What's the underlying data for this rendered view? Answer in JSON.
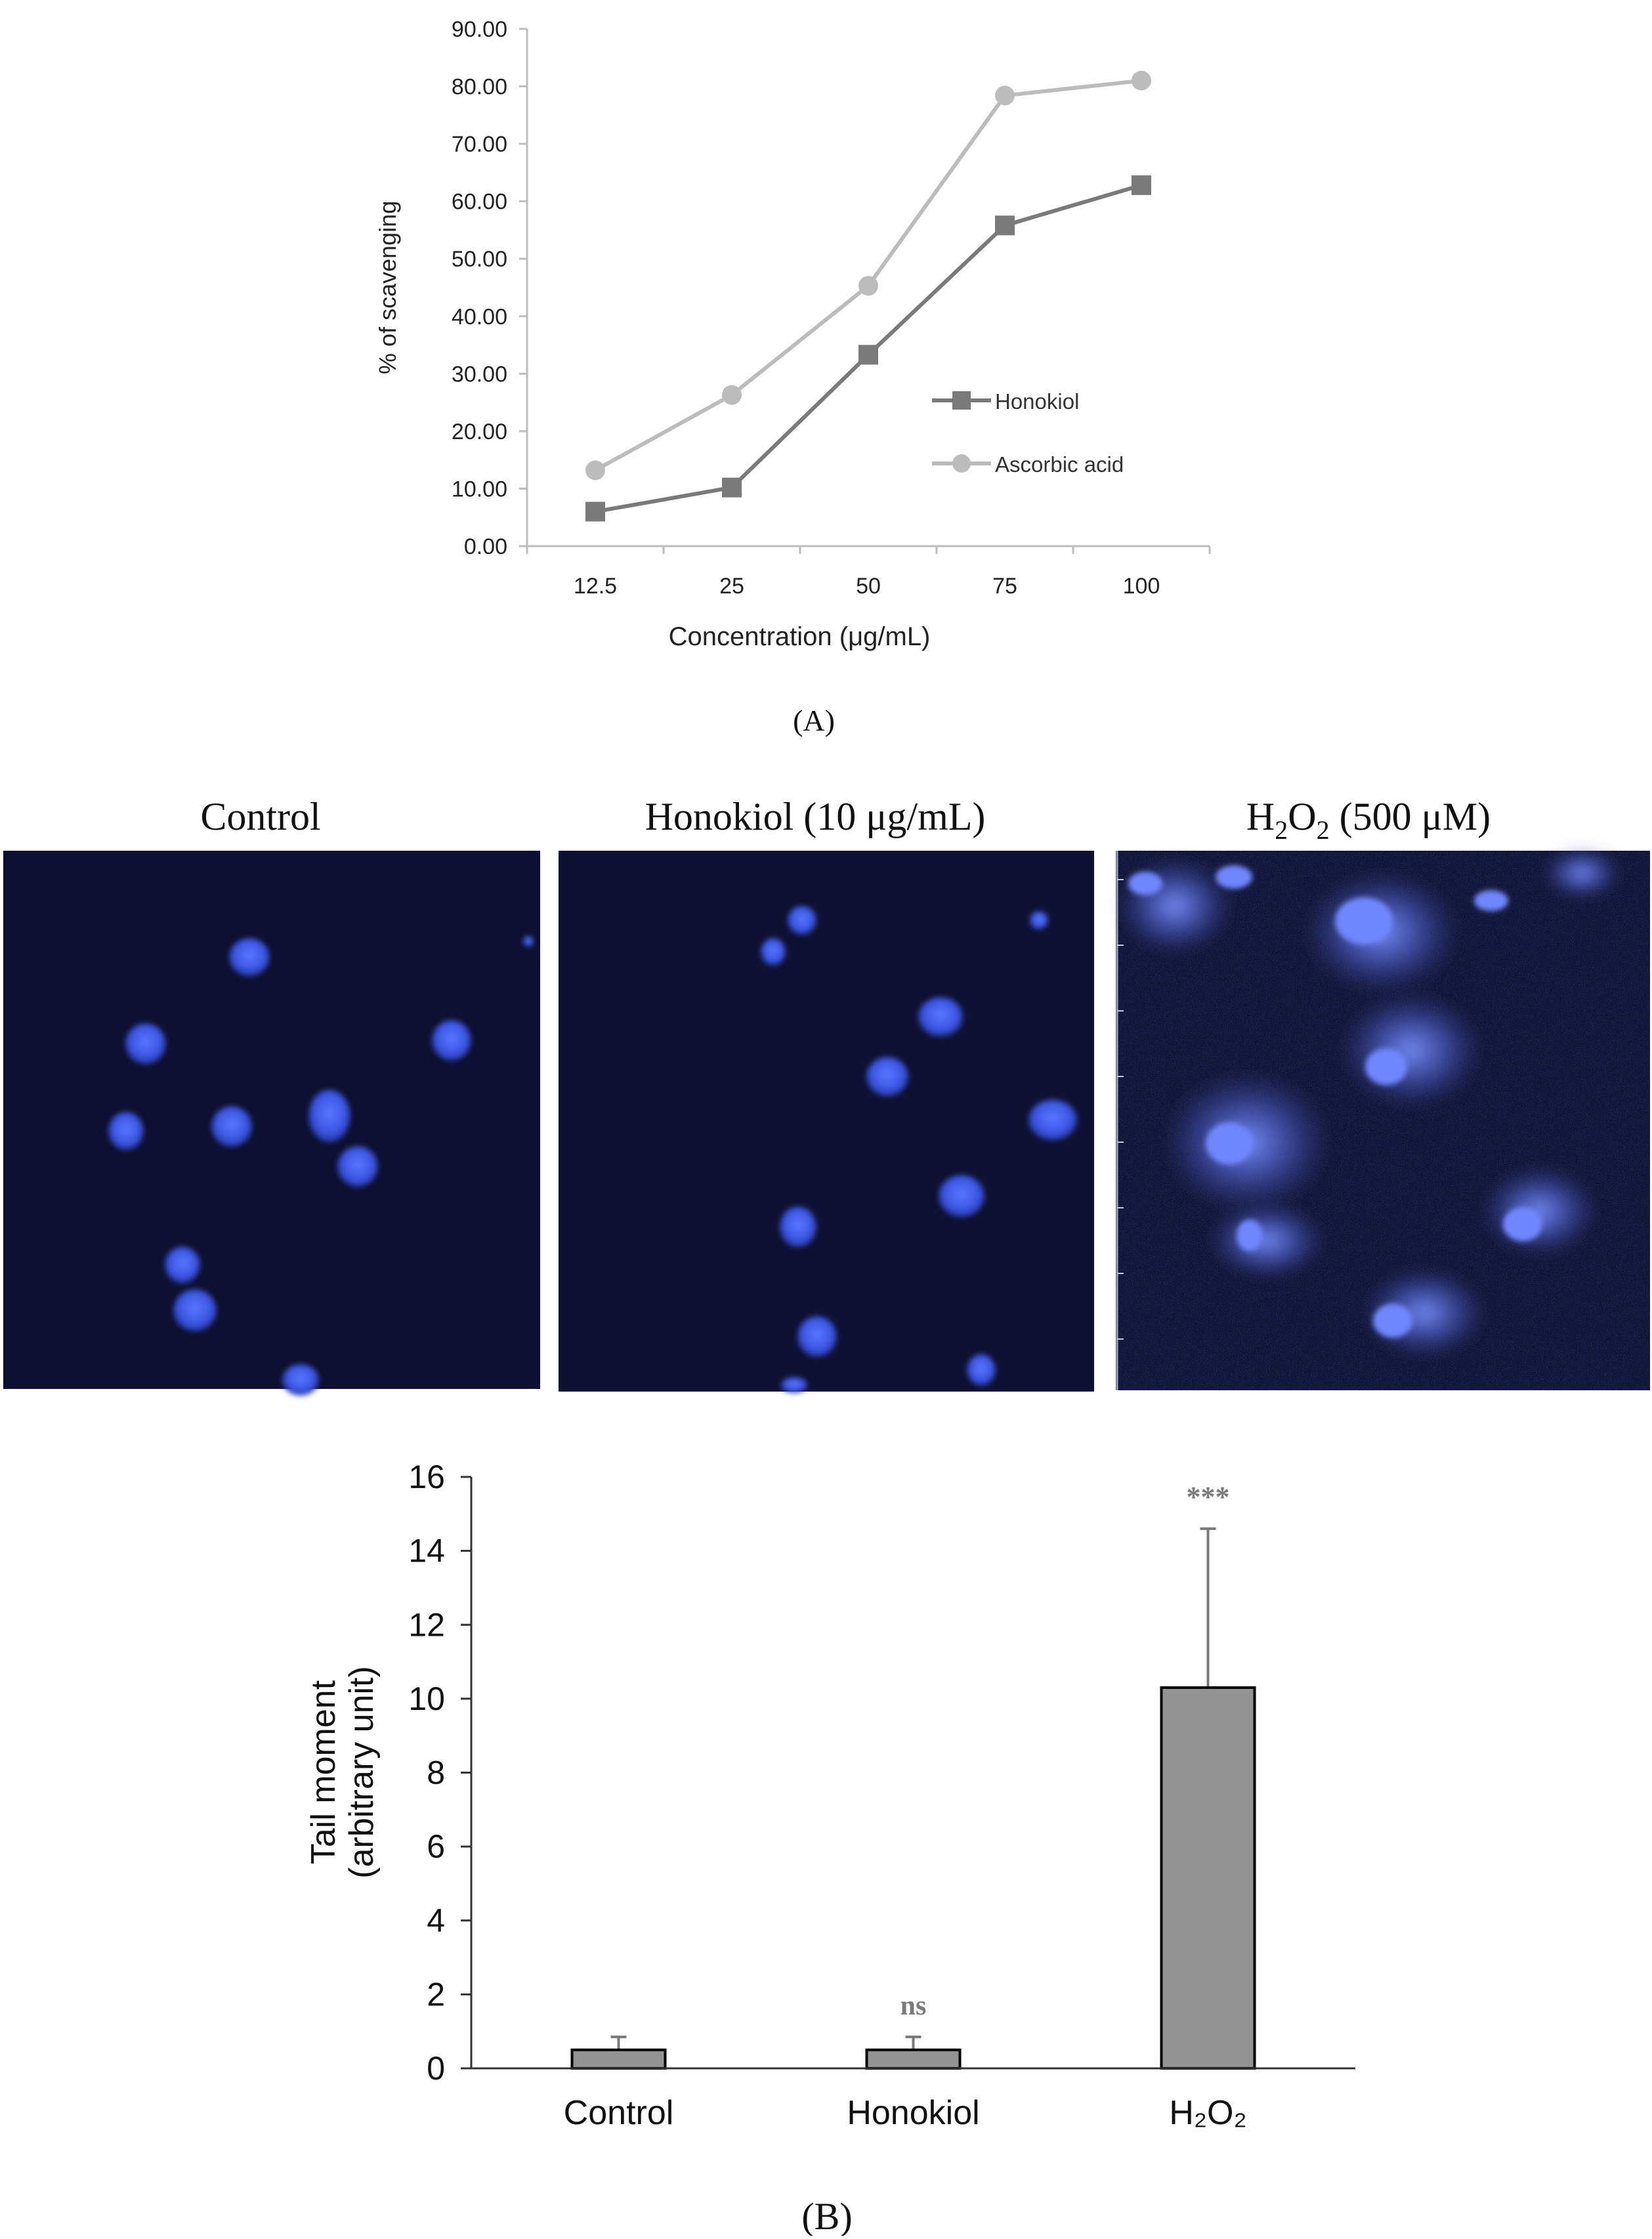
{
  "panel_a": {
    "label": "(A)"
  },
  "panel_b": {
    "label": "(B)",
    "images": [
      {
        "title": "Control",
        "nuclei": "intact"
      },
      {
        "title": "Honokiol (10 μg/mL)",
        "nuclei": "intact"
      },
      {
        "title_parts": [
          "H",
          "2",
          "O",
          "2",
          " (500 μM)"
        ],
        "nuclei": "comet-tails"
      }
    ]
  },
  "chart_data": [
    {
      "type": "line",
      "categories": [
        "12.5",
        "25",
        "50",
        "75",
        "100"
      ],
      "series": [
        {
          "name": "Honokiol",
          "values": [
            6.0,
            10.2,
            33.3,
            55.8,
            62.8
          ],
          "color": "#7a7a7a",
          "marker": "square"
        },
        {
          "name": "Ascorbic acid",
          "values": [
            13.2,
            26.3,
            45.3,
            78.4,
            81.0
          ],
          "color": "#bcbcbc",
          "marker": "circle"
        }
      ],
      "xlabel": "Concentration (μg/mL)",
      "ylabel": "% of scavenging",
      "ylim": [
        0,
        90
      ],
      "yticks": [
        "0.00",
        "10.00",
        "20.00",
        "30.00",
        "40.00",
        "50.00",
        "60.00",
        "70.00",
        "80.00",
        "90.00"
      ],
      "grid": false,
      "legend": "center-right"
    },
    {
      "type": "bar",
      "categories": [
        "Control",
        "Honokiol",
        "H2O2"
      ],
      "category_labels": [
        "Control",
        "Honokiol",
        "H₂O₂"
      ],
      "values": [
        0.5,
        0.5,
        10.3
      ],
      "errors": [
        0.35,
        0.35,
        4.3
      ],
      "annotations": [
        "",
        "ns",
        "***"
      ],
      "ylabel_lines": [
        "Tail moment",
        "(arbitrary unit)"
      ],
      "ylim": [
        0,
        16
      ],
      "yticks": [
        "0",
        "2",
        "4",
        "6",
        "8",
        "10",
        "12",
        "14",
        "16"
      ],
      "bar_color": "#939393"
    }
  ]
}
